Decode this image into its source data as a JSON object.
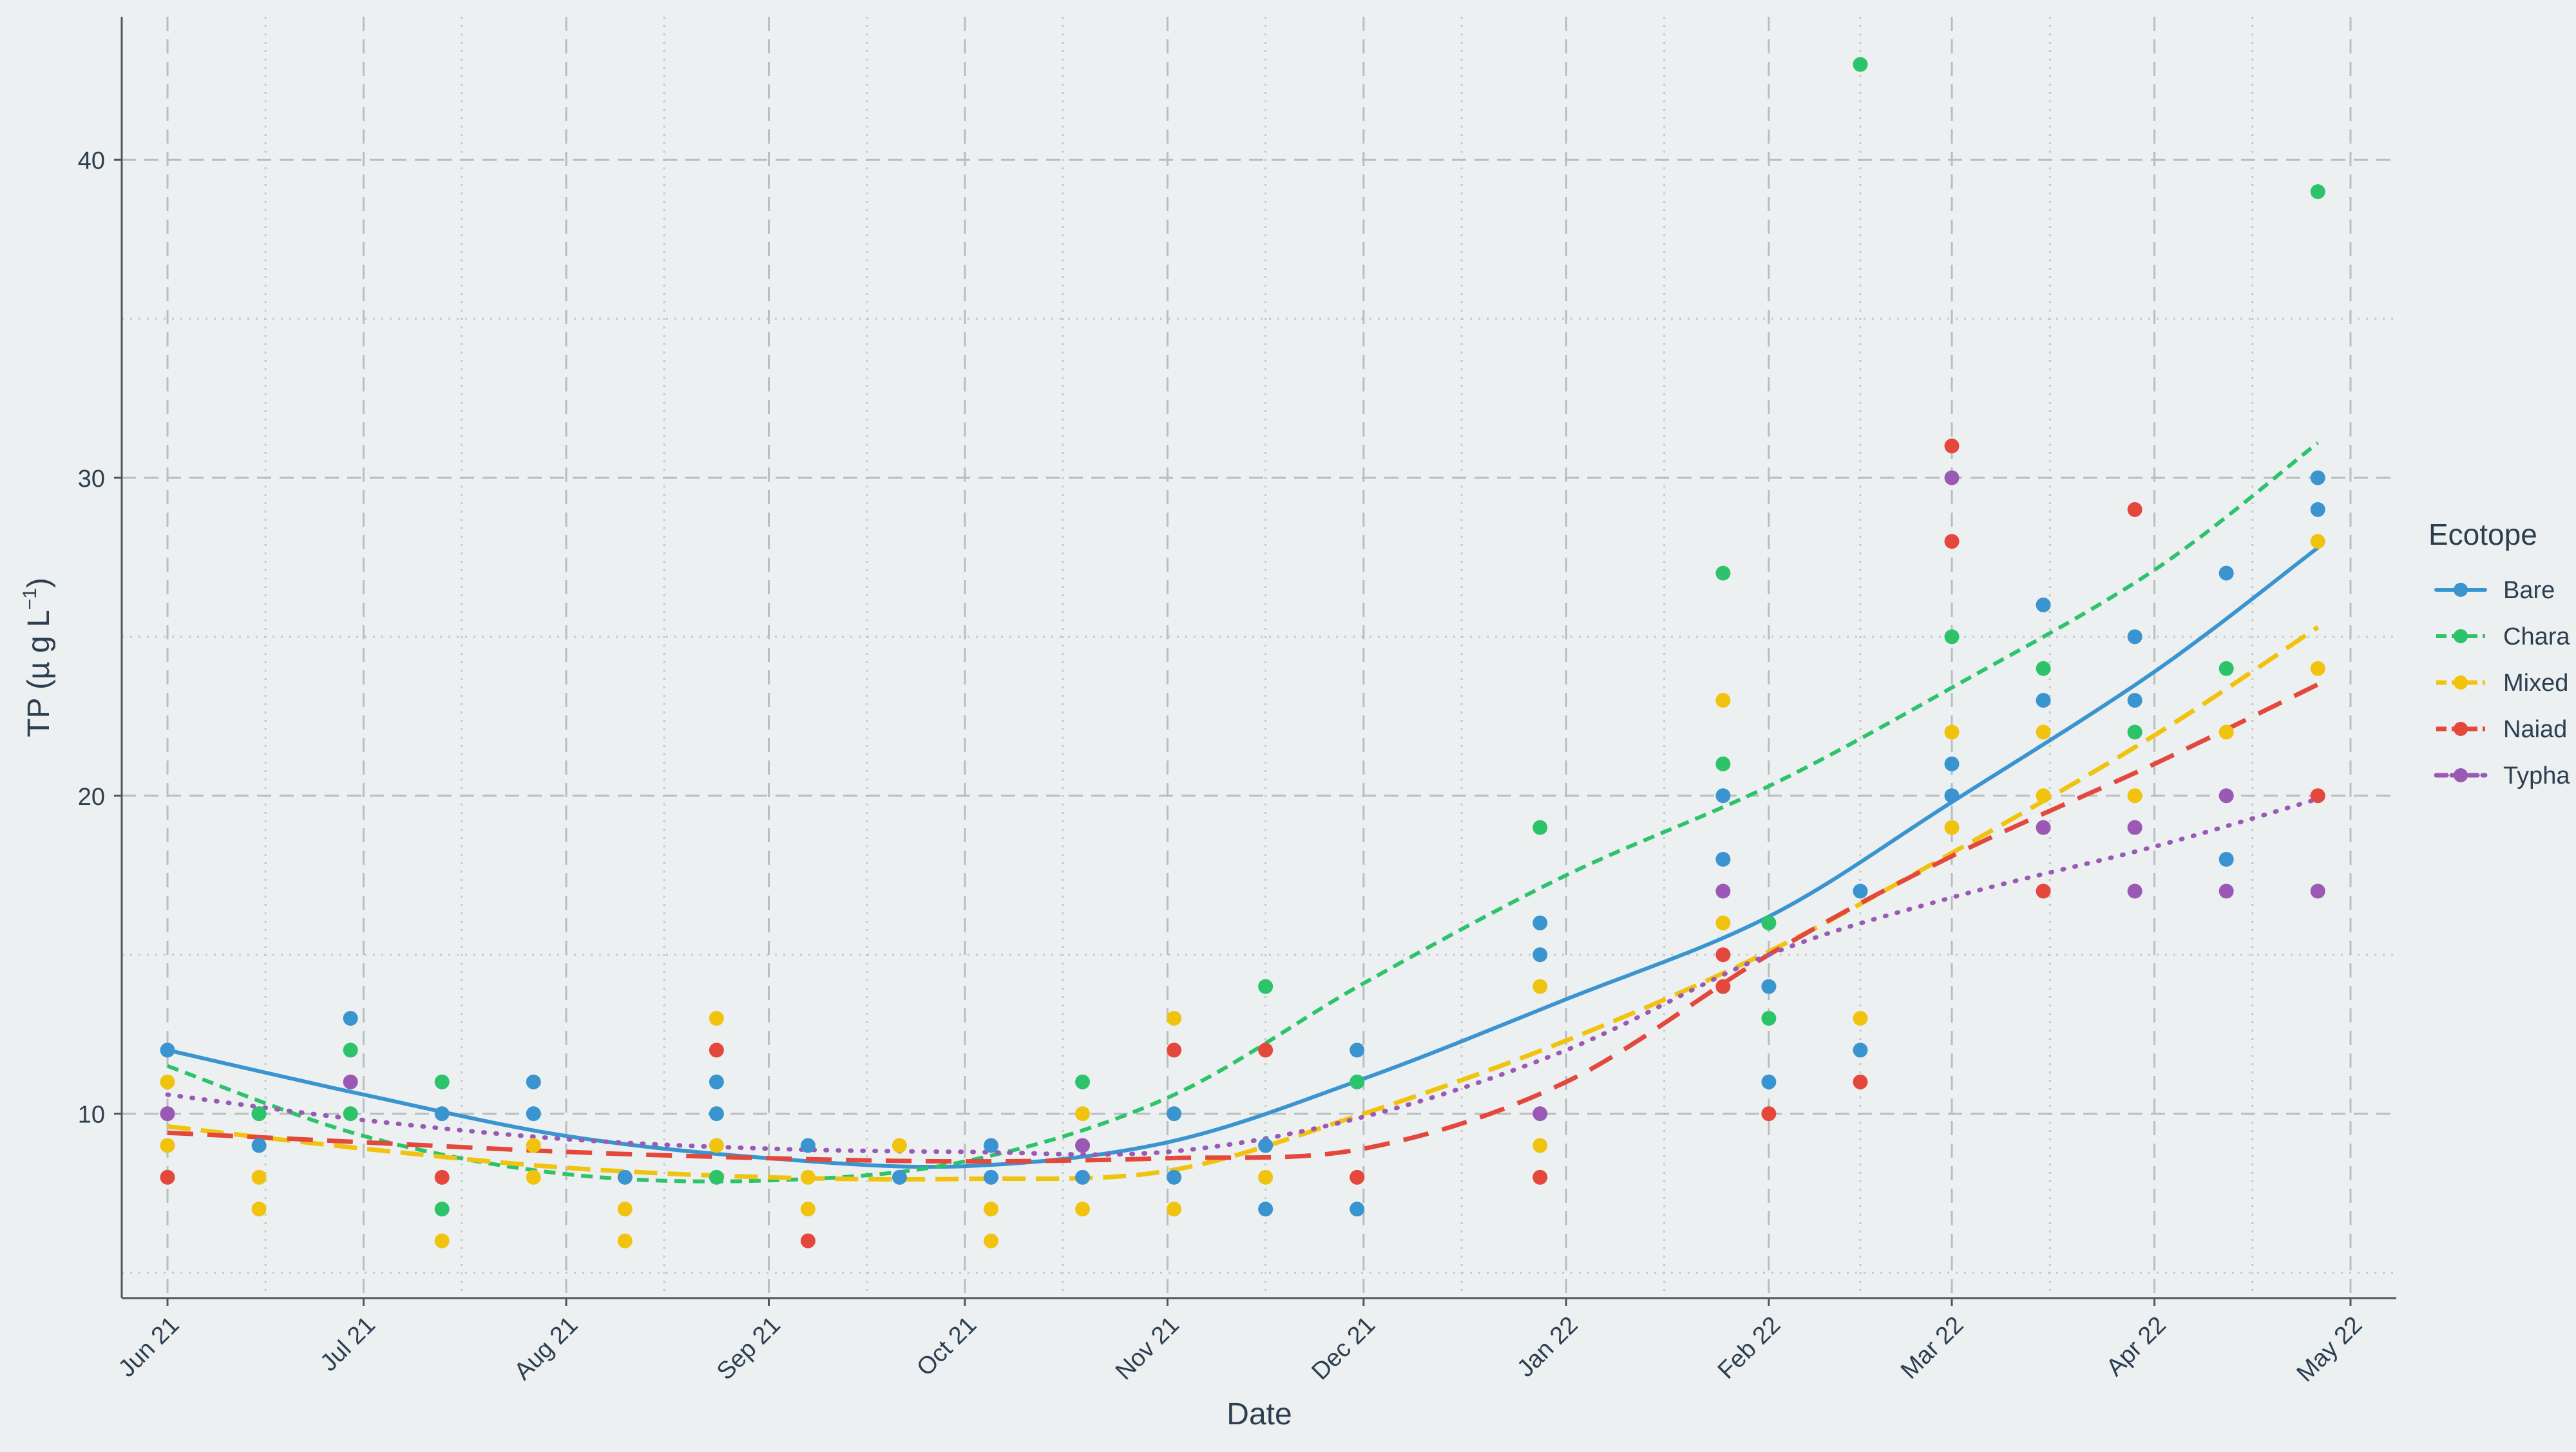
{
  "chart_data": {
    "type": "scatter",
    "title": "",
    "xlabel": "Date",
    "ylabel_main": "TP (µ g L",
    "ylabel_sup": "−1",
    "ylabel_close": ")",
    "x_axis_type": "date",
    "xlim": [
      "2021-05-25",
      "2022-05-08"
    ],
    "ylim": [
      4.2,
      44.5
    ],
    "x_ticks": [
      {
        "date": "2021-06-01",
        "label": "Jun 21"
      },
      {
        "date": "2021-07-01",
        "label": "Jul 21"
      },
      {
        "date": "2021-08-01",
        "label": "Aug 21"
      },
      {
        "date": "2021-09-01",
        "label": "Sep 21"
      },
      {
        "date": "2021-10-01",
        "label": "Oct 21"
      },
      {
        "date": "2021-11-01",
        "label": "Nov 21"
      },
      {
        "date": "2021-12-01",
        "label": "Dec 21"
      },
      {
        "date": "2022-01-01",
        "label": "Jan 22"
      },
      {
        "date": "2022-02-01",
        "label": "Feb 22"
      },
      {
        "date": "2022-03-01",
        "label": "Mar 22"
      },
      {
        "date": "2022-04-01",
        "label": "Apr 22"
      },
      {
        "date": "2022-05-01",
        "label": "May 22"
      }
    ],
    "x_minor_ticks": [
      "2021-06-16",
      "2021-07-16",
      "2021-08-16",
      "2021-09-16",
      "2021-10-16",
      "2021-11-16",
      "2021-12-16",
      "2022-01-16",
      "2022-02-15",
      "2022-03-16",
      "2022-04-16"
    ],
    "y_ticks": [
      10,
      20,
      30,
      40
    ],
    "y_minor_ticks": [
      5,
      15,
      25,
      35
    ],
    "grid": true,
    "background": "#ECF0F1",
    "legend": {
      "title": "Ecotope",
      "position": "right",
      "entries": [
        "Bare",
        "Chara",
        "Mixed",
        "Naiad",
        "Typha"
      ]
    },
    "series": [
      {
        "name": "Bare",
        "color": "#3A94D0",
        "line_style": "solid",
        "points": [
          [
            "2021-06-01",
            12
          ],
          [
            "2021-06-15",
            10
          ],
          [
            "2021-06-15",
            9
          ],
          [
            "2021-06-29",
            13
          ],
          [
            "2021-07-13",
            10
          ],
          [
            "2021-07-27",
            11
          ],
          [
            "2021-07-27",
            10
          ],
          [
            "2021-08-10",
            8
          ],
          [
            "2021-08-24",
            11
          ],
          [
            "2021-08-24",
            10
          ],
          [
            "2021-09-07",
            9
          ],
          [
            "2021-09-21",
            8
          ],
          [
            "2021-10-05",
            9
          ],
          [
            "2021-10-05",
            8
          ],
          [
            "2021-10-19",
            8
          ],
          [
            "2021-11-02",
            10
          ],
          [
            "2021-11-02",
            8
          ],
          [
            "2021-11-16",
            9
          ],
          [
            "2021-11-16",
            7
          ],
          [
            "2021-11-30",
            12
          ],
          [
            "2021-11-30",
            7
          ],
          [
            "2021-12-28",
            16
          ],
          [
            "2021-12-28",
            15
          ],
          [
            "2022-01-25",
            20
          ],
          [
            "2022-01-25",
            18
          ],
          [
            "2022-02-01",
            14
          ],
          [
            "2022-02-01",
            11
          ],
          [
            "2022-02-15",
            17
          ],
          [
            "2022-02-15",
            12
          ],
          [
            "2022-03-01",
            21
          ],
          [
            "2022-03-01",
            20
          ],
          [
            "2022-03-15",
            26
          ],
          [
            "2022-03-15",
            23
          ],
          [
            "2022-03-29",
            25
          ],
          [
            "2022-03-29",
            23
          ],
          [
            "2022-04-12",
            27
          ],
          [
            "2022-04-12",
            18
          ],
          [
            "2022-04-26",
            30
          ],
          [
            "2022-04-26",
            29
          ]
        ],
        "trend": [
          [
            "2021-06-01",
            12.0
          ],
          [
            "2021-07-01",
            10.6
          ],
          [
            "2021-08-01",
            9.3
          ],
          [
            "2021-09-01",
            8.6
          ],
          [
            "2021-10-01",
            8.35
          ],
          [
            "2021-11-01",
            9.1
          ],
          [
            "2021-12-01",
            11.1
          ],
          [
            "2022-01-01",
            13.6
          ],
          [
            "2022-02-01",
            16.2
          ],
          [
            "2022-03-01",
            19.8
          ],
          [
            "2022-04-01",
            23.9
          ],
          [
            "2022-04-26",
            27.8
          ]
        ]
      },
      {
        "name": "Chara",
        "color": "#2DC36A",
        "line_style": "dashed-fine",
        "points": [
          [
            "2021-06-15",
            10
          ],
          [
            "2021-06-29",
            12
          ],
          [
            "2021-06-29",
            10
          ],
          [
            "2021-07-13",
            11
          ],
          [
            "2021-07-13",
            7
          ],
          [
            "2021-08-24",
            8
          ],
          [
            "2021-10-19",
            11
          ],
          [
            "2021-11-16",
            14
          ],
          [
            "2021-11-30",
            11
          ],
          [
            "2021-12-28",
            19
          ],
          [
            "2022-01-25",
            27
          ],
          [
            "2022-01-25",
            21
          ],
          [
            "2022-02-01",
            16
          ],
          [
            "2022-02-01",
            13
          ],
          [
            "2022-02-15",
            43
          ],
          [
            "2022-03-01",
            25
          ],
          [
            "2022-03-15",
            24
          ],
          [
            "2022-03-29",
            22
          ],
          [
            "2022-04-12",
            24
          ],
          [
            "2022-04-26",
            39
          ]
        ],
        "trend": [
          [
            "2021-06-01",
            11.5
          ],
          [
            "2021-07-01",
            9.3
          ],
          [
            "2021-08-01",
            8.1
          ],
          [
            "2021-09-01",
            7.9
          ],
          [
            "2021-10-01",
            8.5
          ],
          [
            "2021-11-01",
            10.5
          ],
          [
            "2021-12-01",
            14.1
          ],
          [
            "2022-01-01",
            17.5
          ],
          [
            "2022-02-01",
            20.3
          ],
          [
            "2022-03-01",
            23.4
          ],
          [
            "2022-04-01",
            27.1
          ],
          [
            "2022-04-26",
            31.1
          ]
        ]
      },
      {
        "name": "Mixed",
        "color": "#F1C30F",
        "line_style": "dashed-long",
        "points": [
          [
            "2021-06-01",
            11
          ],
          [
            "2021-06-01",
            9
          ],
          [
            "2021-06-15",
            8
          ],
          [
            "2021-06-15",
            7
          ],
          [
            "2021-07-13",
            6
          ],
          [
            "2021-07-27",
            9
          ],
          [
            "2021-07-27",
            8
          ],
          [
            "2021-08-10",
            7
          ],
          [
            "2021-08-10",
            6
          ],
          [
            "2021-08-24",
            13
          ],
          [
            "2021-08-24",
            9
          ],
          [
            "2021-09-07",
            8
          ],
          [
            "2021-09-07",
            7
          ],
          [
            "2021-09-21",
            9
          ],
          [
            "2021-10-05",
            7
          ],
          [
            "2021-10-05",
            6
          ],
          [
            "2021-10-19",
            10
          ],
          [
            "2021-10-19",
            7
          ],
          [
            "2021-11-02",
            13
          ],
          [
            "2021-11-02",
            7
          ],
          [
            "2021-11-16",
            8
          ],
          [
            "2021-12-28",
            14
          ],
          [
            "2021-12-28",
            9
          ],
          [
            "2022-01-25",
            23
          ],
          [
            "2022-01-25",
            16
          ],
          [
            "2022-02-15",
            13
          ],
          [
            "2022-03-01",
            22
          ],
          [
            "2022-03-01",
            19
          ],
          [
            "2022-03-15",
            22
          ],
          [
            "2022-03-15",
            20
          ],
          [
            "2022-03-29",
            20
          ],
          [
            "2022-04-12",
            22
          ],
          [
            "2022-04-26",
            28
          ],
          [
            "2022-04-26",
            24
          ]
        ],
        "trend": [
          [
            "2021-06-01",
            9.6
          ],
          [
            "2021-07-01",
            8.9
          ],
          [
            "2021-08-01",
            8.3
          ],
          [
            "2021-09-01",
            8.0
          ],
          [
            "2021-10-01",
            7.95
          ],
          [
            "2021-11-01",
            8.2
          ],
          [
            "2021-12-01",
            10.0
          ],
          [
            "2022-01-01",
            12.3
          ],
          [
            "2022-02-01",
            15.1
          ],
          [
            "2022-03-01",
            18.2
          ],
          [
            "2022-04-01",
            21.9
          ],
          [
            "2022-04-26",
            25.3
          ]
        ]
      },
      {
        "name": "Naiad",
        "color": "#E4473C",
        "line_style": "dashed-wide",
        "points": [
          [
            "2021-06-01",
            8
          ],
          [
            "2021-07-13",
            8
          ],
          [
            "2021-08-24",
            12
          ],
          [
            "2021-09-07",
            6
          ],
          [
            "2021-11-02",
            12
          ],
          [
            "2021-11-16",
            12
          ],
          [
            "2021-11-30",
            8
          ],
          [
            "2021-12-28",
            8
          ],
          [
            "2022-01-25",
            15
          ],
          [
            "2022-01-25",
            14
          ],
          [
            "2022-02-01",
            10
          ],
          [
            "2022-02-15",
            11
          ],
          [
            "2022-03-01",
            31
          ],
          [
            "2022-03-01",
            28
          ],
          [
            "2022-03-15",
            17
          ],
          [
            "2022-03-29",
            29
          ],
          [
            "2022-04-26",
            20
          ]
        ],
        "trend": [
          [
            "2021-06-01",
            9.4
          ],
          [
            "2021-07-01",
            9.1
          ],
          [
            "2021-08-01",
            8.8
          ],
          [
            "2021-09-01",
            8.6
          ],
          [
            "2021-10-01",
            8.5
          ],
          [
            "2021-11-01",
            8.6
          ],
          [
            "2021-12-01",
            8.9
          ],
          [
            "2022-01-01",
            11.0
          ],
          [
            "2022-02-01",
            15.0
          ],
          [
            "2022-03-01",
            18.1
          ],
          [
            "2022-04-01",
            21.0
          ],
          [
            "2022-04-26",
            23.5
          ]
        ]
      },
      {
        "name": "Typha",
        "color": "#9B59B6",
        "line_style": "dotted",
        "points": [
          [
            "2021-06-01",
            10
          ],
          [
            "2021-06-29",
            11
          ],
          [
            "2021-10-19",
            9
          ],
          [
            "2021-12-28",
            10
          ],
          [
            "2022-01-25",
            17
          ],
          [
            "2022-03-01",
            30
          ],
          [
            "2022-03-15",
            19
          ],
          [
            "2022-03-29",
            19
          ],
          [
            "2022-03-29",
            17
          ],
          [
            "2022-04-12",
            20
          ],
          [
            "2022-04-12",
            17
          ],
          [
            "2022-04-26",
            17
          ]
        ],
        "trend": [
          [
            "2021-06-01",
            10.6
          ],
          [
            "2021-07-01",
            9.8
          ],
          [
            "2021-08-01",
            9.2
          ],
          [
            "2021-09-01",
            8.9
          ],
          [
            "2021-10-01",
            8.8
          ],
          [
            "2021-11-01",
            8.8
          ],
          [
            "2021-12-01",
            9.9
          ],
          [
            "2022-01-01",
            12.0
          ],
          [
            "2022-02-01",
            15.0
          ],
          [
            "2022-03-01",
            16.8
          ],
          [
            "2022-04-01",
            18.4
          ],
          [
            "2022-04-26",
            19.9
          ]
        ]
      }
    ]
  }
}
